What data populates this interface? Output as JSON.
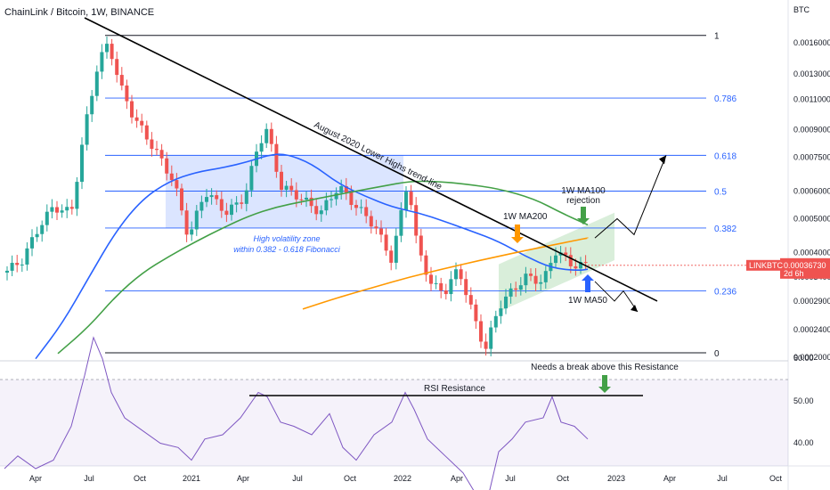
{
  "header": {
    "symbol": "ChainLink / Bitcoin, 1W, BINANCE"
  },
  "colors": {
    "bull": "#26a69a",
    "bear": "#ef5350",
    "ma50": "#2962ff",
    "ma100": "#43a047",
    "ma200": "#ff9800",
    "fib": "#2962ff",
    "rsi": "#7e57c2",
    "price_tag": "#ef5350"
  },
  "chart_data": {
    "type": "candlestick",
    "title": "ChainLink / Bitcoin, 1W, BINANCE",
    "y_unit": "BTC",
    "y_scale": "log",
    "ylim": [
      0.0002,
      0.0017
    ],
    "y_ticks": [
      "0.00160000",
      "0.00130000",
      "0.00110000",
      "0.00090000",
      "0.00075000",
      "0.00060000",
      "0.00050000",
      "0.00040000",
      "0.00034000",
      "0.00029000",
      "0.00024000",
      "0.00020000"
    ],
    "x_ticks": [
      "Apr",
      "Jul",
      "Oct",
      "2021",
      "Apr",
      "Jul",
      "Oct",
      "2022",
      "Apr",
      "Jul",
      "Oct",
      "2023",
      "Apr",
      "Jul",
      "Oct"
    ],
    "last_price": "0.00036730",
    "last_price_sub": "2d 6h",
    "price_tag_label": "LINKBTC",
    "fibonacci": [
      {
        "level": "1",
        "price": 0.00168
      },
      {
        "level": "0.786",
        "price": 0.00111
      },
      {
        "level": "0.618",
        "price": 0.00076
      },
      {
        "level": "0.5",
        "price": 0.0006
      },
      {
        "level": "0.382",
        "price": 0.00047
      },
      {
        "level": "0.236",
        "price": 0.00031
      },
      {
        "level": "0",
        "price": 0.000206
      }
    ],
    "series": [
      {
        "name": "1W MA50",
        "color": "#2962ff",
        "points": [
          [
            40,
            0.000198
          ],
          [
            70,
            0.00025
          ],
          [
            100,
            0.00034
          ],
          [
            130,
            0.00046
          ],
          [
            160,
            0.00057
          ],
          [
            190,
            0.00064
          ],
          [
            220,
            0.00068
          ],
          [
            250,
            0.0007
          ],
          [
            280,
            0.00073
          ],
          [
            300,
            0.00076
          ],
          [
            320,
            0.00077
          ],
          [
            350,
            0.00072
          ],
          [
            380,
            0.00063
          ],
          [
            410,
            0.00058
          ],
          [
            440,
            0.00054
          ],
          [
            470,
            0.00052
          ],
          [
            500,
            0.00049
          ],
          [
            530,
            0.00046
          ],
          [
            560,
            0.00043
          ],
          [
            590,
            0.00039
          ],
          [
            620,
            0.00036
          ],
          [
            650,
            0.000355
          ],
          [
            660,
            0.000358
          ]
        ]
      },
      {
        "name": "1W MA100",
        "color": "#43a047",
        "points": [
          [
            65,
            0.000205
          ],
          [
            100,
            0.000245
          ],
          [
            130,
            0.0003
          ],
          [
            160,
            0.00035
          ],
          [
            190,
            0.00039
          ],
          [
            220,
            0.00043
          ],
          [
            250,
            0.00047
          ],
          [
            280,
            0.00051
          ],
          [
            310,
            0.00054
          ],
          [
            340,
            0.00056
          ],
          [
            370,
            0.00058
          ],
          [
            400,
            0.0006
          ],
          [
            430,
            0.00062
          ],
          [
            460,
            0.00064
          ],
          [
            490,
            0.00064
          ],
          [
            520,
            0.00063
          ],
          [
            560,
            0.00061
          ],
          [
            600,
            0.00057
          ],
          [
            630,
            0.00052
          ],
          [
            660,
            0.00048
          ]
        ]
      },
      {
        "name": "1W MA200",
        "color": "#ff9800",
        "points": [
          [
            340,
            0.000275
          ],
          [
            380,
            0.000297
          ],
          [
            420,
            0.000318
          ],
          [
            460,
            0.00034
          ],
          [
            500,
            0.00036
          ],
          [
            540,
            0.00038
          ],
          [
            580,
            0.0004
          ],
          [
            620,
            0.00042
          ],
          [
            660,
            0.00044
          ]
        ]
      }
    ],
    "rsi": {
      "resistance_label": "RSI Resistance",
      "ticks": [
        "60.00",
        "50.00",
        "40.00"
      ],
      "values": [
        [
          5,
          44
        ],
        [
          20,
          47
        ],
        [
          40,
          44
        ],
        [
          60,
          46
        ],
        [
          80,
          54
        ],
        [
          95,
          66
        ],
        [
          105,
          75
        ],
        [
          115,
          70
        ],
        [
          125,
          62
        ],
        [
          140,
          56
        ],
        [
          160,
          53
        ],
        [
          180,
          50
        ],
        [
          200,
          49
        ],
        [
          215,
          46
        ],
        [
          230,
          51
        ],
        [
          250,
          52
        ],
        [
          270,
          56
        ],
        [
          290,
          62
        ],
        [
          300,
          61
        ],
        [
          315,
          55
        ],
        [
          330,
          54
        ],
        [
          350,
          52
        ],
        [
          370,
          57
        ],
        [
          385,
          49
        ],
        [
          400,
          46
        ],
        [
          420,
          52
        ],
        [
          440,
          55
        ],
        [
          455,
          62
        ],
        [
          465,
          58
        ],
        [
          480,
          51
        ],
        [
          500,
          47
        ],
        [
          520,
          43
        ],
        [
          540,
          36
        ],
        [
          550,
          39
        ],
        [
          560,
          48
        ],
        [
          575,
          51
        ],
        [
          590,
          55
        ],
        [
          610,
          56
        ],
        [
          620,
          61
        ],
        [
          630,
          55
        ],
        [
          645,
          54
        ],
        [
          660,
          51
        ]
      ]
    },
    "annotations": {
      "trendline": "August 2020 Lower Highs trend-line",
      "zone_l1": "High volatility zone",
      "zone_l2": "within 0.382 - 0.618 Fibonacci",
      "ma200_label": "1W MA200",
      "ma100_l1": "1W MA100",
      "ma100_l2": "rejection",
      "ma50_label": "1W MA50",
      "rsi_break": "Needs a break above this Resistance"
    }
  }
}
